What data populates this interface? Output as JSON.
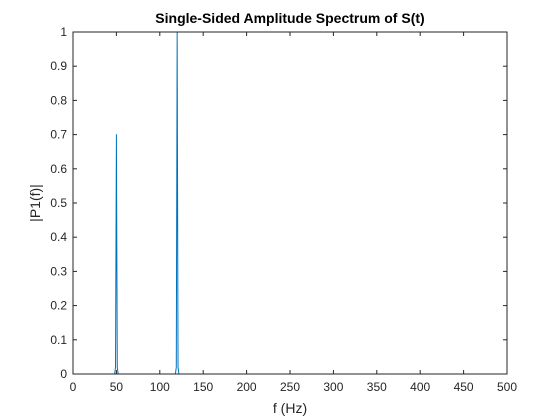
{
  "chart_data": {
    "type": "line",
    "title": "Single-Sided Amplitude Spectrum of S(t)",
    "xlabel": "f (Hz)",
    "ylabel": "|P1(f)|",
    "xlim": [
      0,
      500
    ],
    "ylim": [
      0,
      1
    ],
    "xticks": [
      0,
      50,
      100,
      150,
      200,
      250,
      300,
      350,
      400,
      450,
      500
    ],
    "yticks": [
      0,
      0.1,
      0.2,
      0.3,
      0.4,
      0.5,
      0.6,
      0.7,
      0.8,
      0.9,
      1
    ],
    "xtick_labels": [
      "0",
      "50",
      "100",
      "150",
      "200",
      "250",
      "300",
      "350",
      "400",
      "450",
      "500"
    ],
    "ytick_labels": [
      "0",
      "0.1",
      "0.2",
      "0.3",
      "0.4",
      "0.5",
      "0.6",
      "0.7",
      "0.8",
      "0.9",
      "1"
    ],
    "grid": false,
    "line_color": "#0072BD",
    "axis_color": "#262626",
    "series": [
      {
        "x": [
          0,
          48,
          49,
          50,
          51,
          52,
          118,
          119,
          120,
          121,
          122,
          500
        ],
        "y": [
          0,
          0,
          0.02,
          0.7,
          0.02,
          0,
          0,
          0.02,
          1,
          0.02,
          0,
          0
        ]
      }
    ]
  }
}
